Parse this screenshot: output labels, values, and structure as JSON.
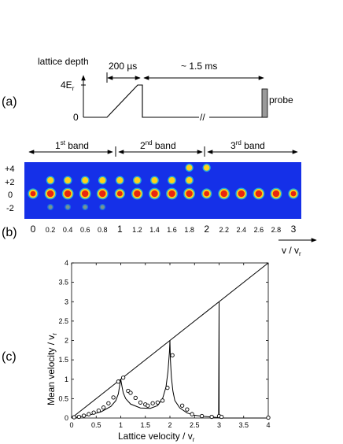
{
  "panel_a": {
    "label": "(a)",
    "y_title": "lattice depth",
    "y_tick_top": "4E",
    "y_tick_top_sub": "r",
    "y_tick_zero": "0",
    "ramp_duration": "200 µs",
    "hold_duration": "~ 1.5 ms",
    "probe_label": "probe",
    "break_mark": "//"
  },
  "panel_b": {
    "label": "(b)",
    "bands": [
      {
        "num": "1",
        "sup": "st",
        "word": " band"
      },
      {
        "num": "2",
        "sup": "nd",
        "word": " band"
      },
      {
        "num": "3",
        "sup": "rd",
        "word": " band"
      }
    ],
    "order_labels": [
      "+4",
      "+2",
      "0",
      "-2"
    ],
    "velocity_labels": [
      "0",
      "0.2",
      "0.4",
      "0.6",
      "0.8",
      "1",
      "1.2",
      "1.4",
      "1.6",
      "1.8",
      "2",
      "2.2",
      "2.4",
      "2.6",
      "2.8",
      "3"
    ],
    "axis_label": "v / v",
    "axis_label_sub": "r",
    "image_colors": {
      "background": "#1530e8",
      "peak": "#e8260f",
      "mid": "#ffd21a",
      "edge": "#28e0d8"
    }
  },
  "panel_c": {
    "label": "(c)",
    "xlabel": "Lattice velocity / v",
    "xlabel_sub": "r",
    "ylabel": "Mean velocity / v",
    "ylabel_sub": "r"
  },
  "chart_data": {
    "type": "line",
    "xlim": [
      0,
      4
    ],
    "ylim": [
      0,
      4
    ],
    "xticks": [
      "0",
      "0.5",
      "1",
      "1.5",
      "2",
      "2.5",
      "3",
      "3.5",
      "4"
    ],
    "yticks": [
      "0",
      "0.5",
      "1",
      "1.5",
      "2",
      "2.5",
      "3",
      "3.5",
      "4"
    ],
    "grid": false,
    "series": [
      {
        "style": "line",
        "points": [
          [
            0,
            0
          ],
          [
            4,
            4
          ]
        ]
      },
      {
        "style": "line",
        "points": [
          [
            0,
            0
          ],
          [
            0.2,
            0.04
          ],
          [
            0.4,
            0.09
          ],
          [
            0.6,
            0.16
          ],
          [
            0.8,
            0.3
          ],
          [
            0.9,
            0.45
          ],
          [
            0.95,
            0.62
          ],
          [
            0.98,
            0.85
          ],
          [
            1.0,
            1.0
          ],
          [
            1.02,
            0.85
          ],
          [
            1.05,
            0.65
          ],
          [
            1.1,
            0.5
          ],
          [
            1.2,
            0.36
          ],
          [
            1.4,
            0.26
          ],
          [
            1.6,
            0.25
          ],
          [
            1.75,
            0.32
          ],
          [
            1.85,
            0.5
          ],
          [
            1.92,
            0.8
          ],
          [
            1.96,
            1.2
          ],
          [
            1.99,
            1.7
          ],
          [
            2.0,
            2.0
          ],
          [
            2.01,
            1.5
          ],
          [
            2.03,
            1.05
          ],
          [
            2.06,
            0.7
          ],
          [
            2.1,
            0.45
          ],
          [
            2.2,
            0.26
          ],
          [
            2.35,
            0.13
          ],
          [
            2.5,
            0.07
          ],
          [
            2.7,
            0.04
          ],
          [
            2.9,
            0.02
          ],
          [
            2.99,
            0.01
          ],
          [
            3.0,
            3.0
          ],
          [
            3.0,
            0.0
          ],
          [
            3.5,
            0.0
          ],
          [
            4.0,
            0.0
          ]
        ]
      },
      {
        "style": "markers",
        "points": [
          [
            0.05,
            0.02
          ],
          [
            0.15,
            0.03
          ],
          [
            0.25,
            0.06
          ],
          [
            0.35,
            0.1
          ],
          [
            0.45,
            0.14
          ],
          [
            0.55,
            0.19
          ],
          [
            0.65,
            0.27
          ],
          [
            0.75,
            0.38
          ],
          [
            0.85,
            0.53
          ],
          [
            0.95,
            0.94
          ],
          [
            1.05,
            1.04
          ],
          [
            1.15,
            0.7
          ],
          [
            1.2,
            0.65
          ],
          [
            1.3,
            0.52
          ],
          [
            1.4,
            0.4
          ],
          [
            1.5,
            0.35
          ],
          [
            1.55,
            0.32
          ],
          [
            1.65,
            0.38
          ],
          [
            1.75,
            0.4
          ],
          [
            1.85,
            0.45
          ],
          [
            1.95,
            0.78
          ],
          [
            2.05,
            1.62
          ],
          [
            2.25,
            0.32
          ],
          [
            2.35,
            0.22
          ],
          [
            2.45,
            0.1
          ],
          [
            2.65,
            0.05
          ],
          [
            2.85,
            0.03
          ],
          [
            3.0,
            0.05
          ],
          [
            3.05,
            0.03
          ],
          [
            4.0,
            0.01
          ]
        ]
      }
    ]
  }
}
